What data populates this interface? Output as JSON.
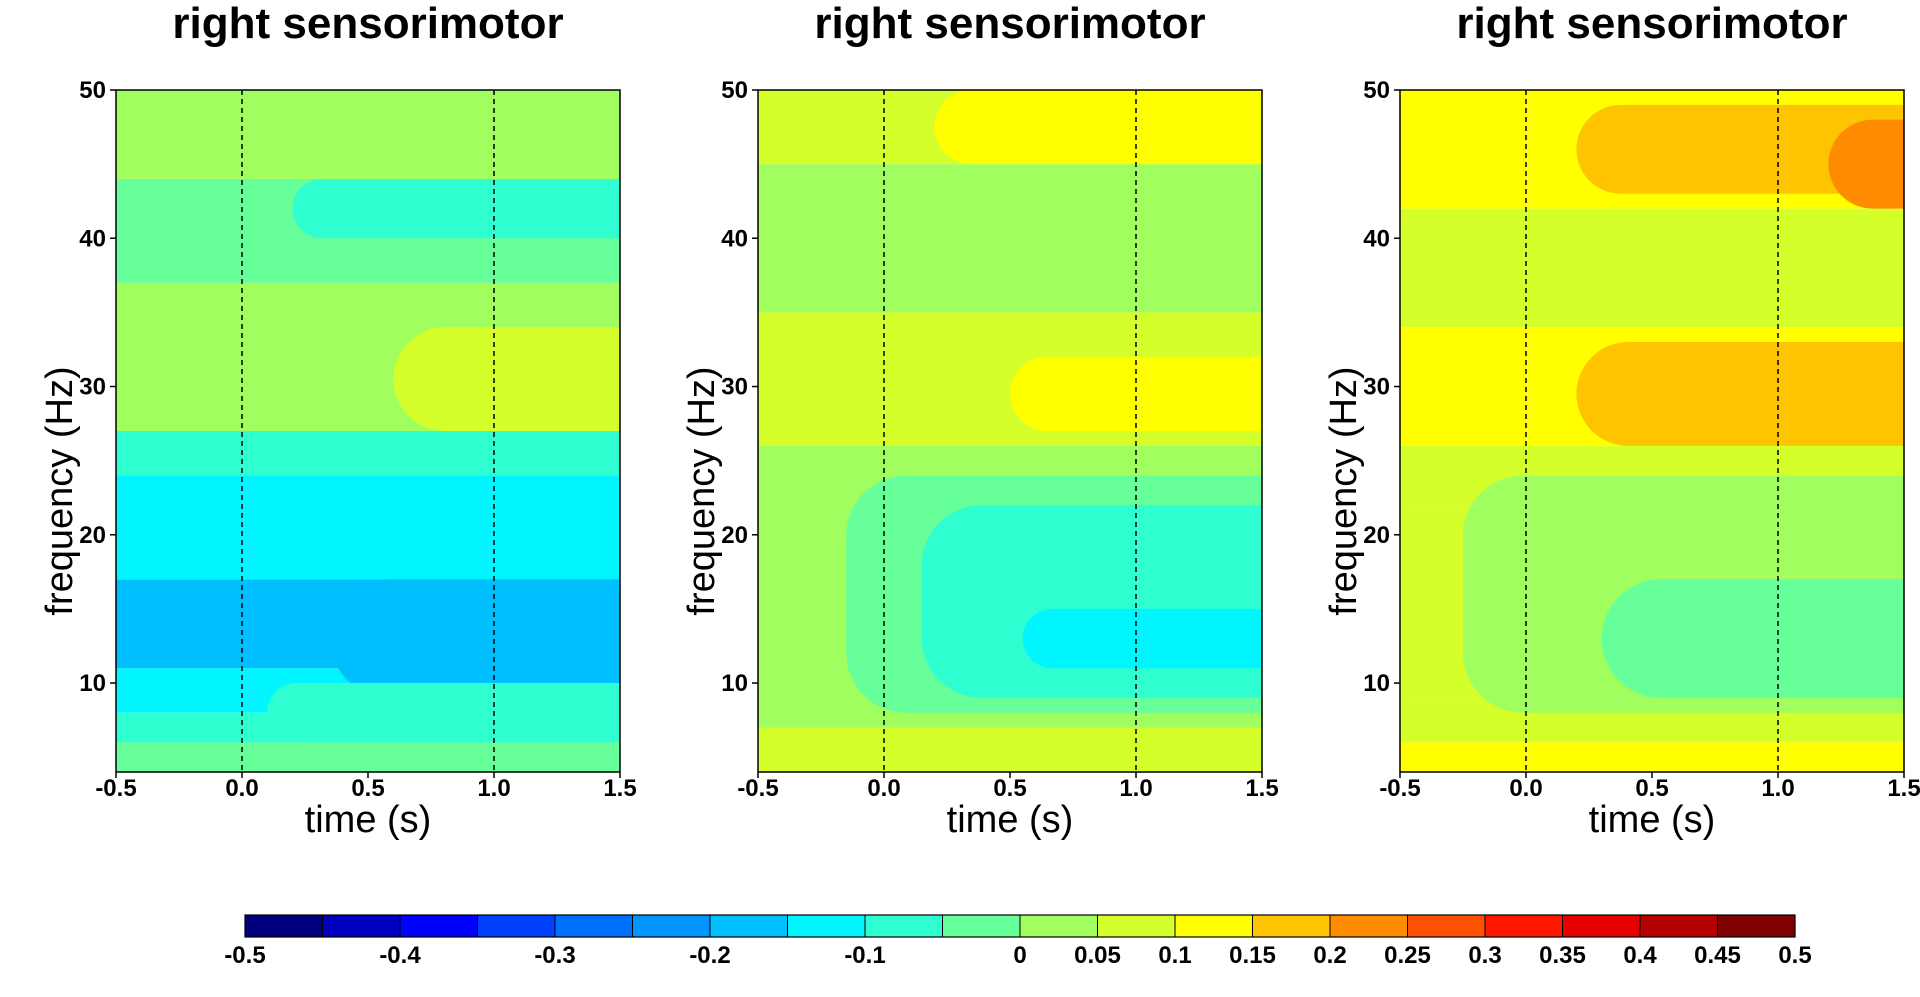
{
  "chart_data": [
    {
      "type": "heatmap",
      "title": "right sensorimotor",
      "xlabel": "time (s)",
      "ylabel": "frequency (Hz)",
      "xlim": [
        -0.5,
        1.5
      ],
      "ylim": [
        4,
        50
      ],
      "xticks": [
        "-0.5",
        "0.0",
        "0.5",
        "1.0",
        "1.5"
      ],
      "yticks": [
        "10",
        "20",
        "30",
        "40",
        "50"
      ],
      "vlines": [
        0.0,
        1.0
      ],
      "bands": [
        {
          "f_low": 4,
          "f_high": 6,
          "value": -0.05
        },
        {
          "f_low": 6,
          "f_high": 8,
          "value": -0.1
        },
        {
          "f_low": 8,
          "f_high": 11,
          "value": -0.15
        },
        {
          "f_low": 11,
          "f_high": 17,
          "value": -0.2
        },
        {
          "f_low": 17,
          "f_high": 24,
          "value": -0.15
        },
        {
          "f_low": 24,
          "f_high": 27,
          "value": -0.1
        },
        {
          "f_low": 27,
          "f_high": 37,
          "value": 0.0
        },
        {
          "f_low": 37,
          "f_high": 44,
          "value": -0.05
        },
        {
          "f_low": 44,
          "f_high": 50,
          "value": 0.0
        }
      ],
      "blobs": [
        {
          "t0": -0.2,
          "t1": 1.5,
          "f0": 17,
          "f1": 24,
          "value": -0.15
        },
        {
          "t0": 0.35,
          "t1": 1.5,
          "f0": 9,
          "f1": 17,
          "value": -0.2
        },
        {
          "t0": 0.1,
          "t1": 1.5,
          "f0": 6,
          "f1": 10,
          "value": -0.1
        },
        {
          "t0": 0.2,
          "t1": 1.5,
          "f0": 40,
          "f1": 44,
          "value": -0.1
        },
        {
          "t0": 0.6,
          "t1": 1.5,
          "f0": 27,
          "f1": 34,
          "value": 0.05
        }
      ]
    },
    {
      "type": "heatmap",
      "title": "right sensorimotor",
      "xlabel": "time (s)",
      "ylabel": "frequency (Hz)",
      "xlim": [
        -0.5,
        1.5
      ],
      "ylim": [
        4,
        50
      ],
      "xticks": [
        "-0.5",
        "0.0",
        "0.5",
        "1.0",
        "1.5"
      ],
      "yticks": [
        "10",
        "20",
        "30",
        "40",
        "50"
      ],
      "vlines": [
        0.0,
        1.0
      ],
      "bands": [
        {
          "f_low": 4,
          "f_high": 7,
          "value": 0.05
        },
        {
          "f_low": 7,
          "f_high": 26,
          "value": 0.0
        },
        {
          "f_low": 26,
          "f_high": 35,
          "value": 0.05
        },
        {
          "f_low": 35,
          "f_high": 45,
          "value": 0.0
        },
        {
          "f_low": 45,
          "f_high": 50,
          "value": 0.05
        }
      ],
      "blobs": [
        {
          "t0": -0.15,
          "t1": 1.5,
          "f0": 8,
          "f1": 24,
          "value": -0.05
        },
        {
          "t0": 0.15,
          "t1": 1.5,
          "f0": 9,
          "f1": 22,
          "value": -0.1
        },
        {
          "t0": 0.55,
          "t1": 1.5,
          "f0": 11,
          "f1": 15,
          "value": -0.15
        },
        {
          "t0": 0.2,
          "t1": 1.5,
          "f0": 45,
          "f1": 50,
          "value": 0.1
        },
        {
          "t0": 0.5,
          "t1": 1.5,
          "f0": 27,
          "f1": 32,
          "value": 0.1
        }
      ]
    },
    {
      "type": "heatmap",
      "title": "right sensorimotor",
      "xlabel": "time (s)",
      "ylabel": "frequency (Hz)",
      "xlim": [
        -0.5,
        1.5
      ],
      "ylim": [
        4,
        50
      ],
      "xticks": [
        "-0.5",
        "0.0",
        "0.5",
        "1.0",
        "1.5"
      ],
      "yticks": [
        "10",
        "20",
        "30",
        "40",
        "50"
      ],
      "vlines": [
        0.0,
        1.0
      ],
      "bands": [
        {
          "f_low": 4,
          "f_high": 6,
          "value": 0.1
        },
        {
          "f_low": 6,
          "f_high": 9,
          "value": 0.05
        },
        {
          "f_low": 9,
          "f_high": 22,
          "value": 0.05
        },
        {
          "f_low": 22,
          "f_high": 26,
          "value": 0.05
        },
        {
          "f_low": 26,
          "f_high": 34,
          "value": 0.1
        },
        {
          "f_low": 34,
          "f_high": 42,
          "value": 0.05
        },
        {
          "f_low": 42,
          "f_high": 48,
          "value": 0.1
        },
        {
          "f_low": 48,
          "f_high": 50,
          "value": 0.1
        }
      ],
      "blobs": [
        {
          "t0": -0.25,
          "t1": 1.5,
          "f0": 8,
          "f1": 24,
          "value": 0.0
        },
        {
          "t0": 0.3,
          "t1": 1.5,
          "f0": 9,
          "f1": 17,
          "value": -0.05
        },
        {
          "t0": 0.2,
          "t1": 1.5,
          "f0": 26,
          "f1": 33,
          "value": 0.15
        },
        {
          "t0": 0.2,
          "t1": 1.5,
          "f0": 43,
          "f1": 49,
          "value": 0.15
        },
        {
          "t0": 1.2,
          "t1": 1.5,
          "f0": 42,
          "f1": 48,
          "value": 0.2
        }
      ]
    }
  ],
  "colorbar": {
    "levels": [
      -0.5,
      -0.45,
      -0.4,
      -0.35,
      -0.3,
      -0.25,
      -0.2,
      -0.15,
      -0.1,
      -0.05,
      0,
      0.05,
      0.1,
      0.15,
      0.2,
      0.25,
      0.3,
      0.35,
      0.4,
      0.45,
      0.5
    ],
    "colors": [
      "#00007F",
      "#0000BE",
      "#0000FF",
      "#0040FF",
      "#0070FF",
      "#0095FF",
      "#00BFFF",
      "#00F5FF",
      "#2FFFD0",
      "#66FF99",
      "#A0FF5F",
      "#D4FF2B",
      "#FFFF00",
      "#FFC400",
      "#FF8C00",
      "#FF5000",
      "#FF1800",
      "#E60000",
      "#B40000",
      "#7F0000"
    ],
    "tick_labels": [
      {
        "text": "-0.5",
        "value": -0.5
      },
      {
        "text": "-0.4",
        "value": -0.4
      },
      {
        "text": "-0.3",
        "value": -0.3
      },
      {
        "text": "-0.2",
        "value": -0.2
      },
      {
        "text": "-0.1",
        "value": -0.1
      },
      {
        "text": "0",
        "value": 0
      },
      {
        "text": "0.05",
        "value": 0.05
      },
      {
        "text": "0.1",
        "value": 0.1
      },
      {
        "text": "0.15",
        "value": 0.15
      },
      {
        "text": "0.2",
        "value": 0.2
      },
      {
        "text": "0.25",
        "value": 0.25
      },
      {
        "text": "0.3",
        "value": 0.3
      },
      {
        "text": "0.35",
        "value": 0.35
      },
      {
        "text": "0.4",
        "value": 0.4
      },
      {
        "text": "0.45",
        "value": 0.45
      },
      {
        "text": "0.5",
        "value": 0.5
      }
    ]
  }
}
